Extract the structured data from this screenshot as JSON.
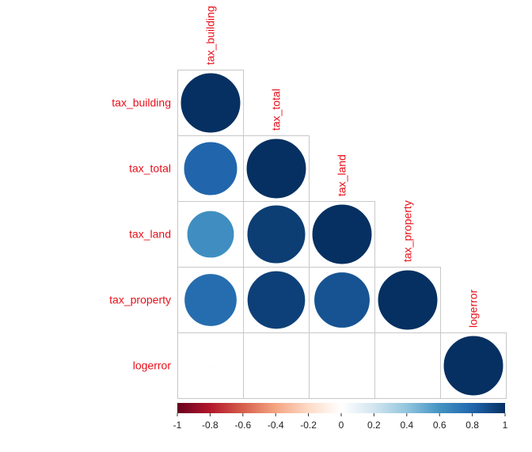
{
  "chart_data": {
    "type": "heatmap",
    "subtype": "correlation-matrix-lower-triangular",
    "glyph": "circle",
    "variables": [
      "tax_building",
      "tax_total",
      "tax_land",
      "tax_property",
      "logerror"
    ],
    "matrix": [
      [
        1.0,
        0.8,
        0.62,
        0.77,
        0.01
      ],
      [
        0.8,
        1.0,
        0.95,
        0.94,
        0.0
      ],
      [
        0.62,
        0.95,
        1.0,
        0.87,
        0.0
      ],
      [
        0.77,
        0.94,
        0.87,
        1.0,
        0.0
      ],
      [
        0.01,
        0.0,
        0.0,
        0.0,
        1.0
      ]
    ],
    "color_scale": {
      "min": -1,
      "max": 1,
      "stops": [
        "#67001F",
        "#B2182B",
        "#D6604D",
        "#F4A582",
        "#FDDBC7",
        "#FFFFFF",
        "#D1E5F0",
        "#92C5DE",
        "#4393C3",
        "#2166AC",
        "#053061"
      ],
      "ticks": [
        "-1",
        "-0.8",
        "-0.6",
        "-0.4",
        "-0.2",
        "0",
        "0.2",
        "0.4",
        "0.6",
        "0.8",
        "1"
      ]
    },
    "label_color": "#e8101a",
    "grid": true,
    "legend": "bottom"
  }
}
